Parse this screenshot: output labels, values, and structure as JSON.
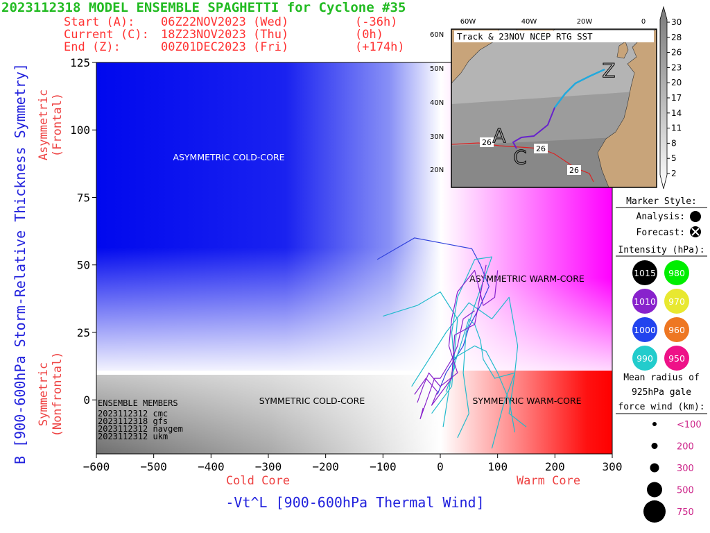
{
  "header": {
    "title": "2023112318 MODEL ENSEMBLE SPAGHETTI for Cyclone #35",
    "start_label": "Start (A):",
    "start_time": "06Z22NOV2023 (Wed)",
    "start_offset": "(-36h)",
    "current_label": "Current (C):",
    "current_time": "18Z23NOV2023 (Thu)",
    "current_offset": "(0h)",
    "end_label": "End (Z):",
    "end_time": "00Z01DEC2023 (Fri)",
    "end_offset": "(+174h)"
  },
  "colors": {
    "title": "#22bb22",
    "header": "#ff3333",
    "axis_label": "#2222dd",
    "region_label": "#ee4444",
    "ensemble_cyan": "#22bbcc",
    "ensemble_purple": "#8822cc",
    "ensemble_blue": "#3344dd"
  },
  "chart_data": {
    "type": "line",
    "title": "2023112318 MODEL ENSEMBLE SPAGHETTI for Cyclone #35",
    "xlabel": "-Vt^L [900-600hPa Thermal Wind]",
    "ylabel": "B [900-600hPa Storm-Relative Thickness Symmetry]",
    "x_sublabel_left": "Cold Core",
    "x_sublabel_right": "Warm Core",
    "y_sublabel_top": "Asymmetric",
    "y_sublabel_top2": "(Frontal)",
    "y_sublabel_bottom": "Symmetric",
    "y_sublabel_bottom2": "(Nonfrontal)",
    "xlim": [
      -600,
      300
    ],
    "ylim": [
      -20,
      125
    ],
    "xticks": [
      "-600",
      "-500",
      "-400",
      "-300",
      "-200",
      "-100",
      "0",
      "100",
      "200",
      "300"
    ],
    "yticks": [
      "0",
      "25",
      "50",
      "75",
      "100",
      "125"
    ],
    "quadrants": {
      "asym_cold": "ASYMMETRIC COLD-CORE",
      "asym_warm": "ASYMMETRIC WARM-CORE",
      "sym_cold": "SYMMETRIC COLD-CORE",
      "sym_warm": "SYMMETRIC WARM-CORE"
    },
    "ensemble_header": "ENSEMBLE MEMBERS",
    "ensemble_members": [
      "2023112312 cmc",
      "2023112318 gfs",
      "2023112312 navgem",
      "2023112312 ukm"
    ],
    "series": [
      {
        "color": "#3344dd",
        "values": [
          [
            -5,
            2
          ],
          [
            10,
            10
          ],
          [
            40,
            20
          ],
          [
            50,
            27
          ],
          [
            70,
            35
          ],
          [
            85,
            42
          ],
          [
            70,
            50
          ],
          [
            55,
            56
          ],
          [
            -45,
            60
          ],
          [
            -110,
            52
          ]
        ]
      },
      {
        "color": "#22bbcc",
        "values": [
          [
            10,
            3
          ],
          [
            25,
            12
          ],
          [
            20,
            25
          ],
          [
            30,
            38
          ],
          [
            45,
            45
          ],
          [
            60,
            52
          ],
          [
            90,
            53
          ],
          [
            60,
            35
          ],
          [
            45,
            25
          ],
          [
            40,
            10
          ],
          [
            50,
            -5
          ],
          [
            30,
            -14
          ]
        ]
      },
      {
        "color": "#22bbcc",
        "values": [
          [
            5,
            -10
          ],
          [
            20,
            10
          ],
          [
            35,
            20
          ],
          [
            50,
            30
          ],
          [
            60,
            28
          ],
          [
            70,
            22
          ],
          [
            75,
            15
          ],
          [
            95,
            8
          ],
          [
            130,
            10
          ],
          [
            120,
            -5
          ],
          [
            150,
            -10
          ]
        ]
      },
      {
        "color": "#22bbcc",
        "values": [
          [
            -50,
            5
          ],
          [
            -20,
            15
          ],
          [
            10,
            25
          ],
          [
            50,
            36
          ],
          [
            90,
            30
          ],
          [
            120,
            38
          ],
          [
            135,
            20
          ],
          [
            130,
            10
          ],
          [
            110,
            -2
          ],
          [
            90,
            -18
          ]
        ]
      },
      {
        "color": "#22bbcc",
        "values": [
          [
            20,
            15
          ],
          [
            60,
            20
          ],
          [
            80,
            18
          ],
          [
            100,
            10
          ],
          [
            120,
            0
          ],
          [
            130,
            -12
          ]
        ]
      },
      {
        "color": "#22bbcc",
        "values": [
          [
            -15,
            -5
          ],
          [
            20,
            5
          ],
          [
            30,
            30
          ],
          [
            0,
            40
          ],
          [
            -40,
            35
          ],
          [
            -100,
            31
          ]
        ]
      },
      {
        "color": "#8822cc",
        "values": [
          [
            -40,
            -1
          ],
          [
            -30,
            5
          ],
          [
            -20,
            10
          ],
          [
            0,
            5
          ],
          [
            30,
            10
          ],
          [
            15,
            20
          ],
          [
            20,
            30
          ],
          [
            30,
            40
          ],
          [
            60,
            48
          ],
          [
            75,
            35
          ],
          [
            95,
            38
          ],
          [
            100,
            48
          ]
        ]
      },
      {
        "color": "#8822cc",
        "values": [
          [
            -45,
            2
          ],
          [
            -25,
            8
          ],
          [
            -5,
            3
          ],
          [
            -15,
            -2
          ],
          [
            20,
            8
          ],
          [
            25,
            24
          ],
          [
            60,
            28
          ],
          [
            80,
            50
          ]
        ]
      },
      {
        "color": "#8822cc",
        "values": [
          [
            -30,
            -3
          ],
          [
            -35,
            -7
          ],
          [
            -20,
            2
          ],
          [
            -10,
            8
          ],
          [
            0,
            8
          ],
          [
            20,
            15
          ],
          [
            30,
            20
          ],
          [
            40,
            30
          ],
          [
            60,
            33
          ]
        ]
      }
    ]
  },
  "inset": {
    "title": "Track & 23NOV NCEP RTG SST",
    "lon_ticks": [
      "60W",
      "40W",
      "20W",
      "0"
    ],
    "lat_ticks": [
      "60N",
      "50N",
      "40N",
      "30N",
      "20N"
    ],
    "sst_labels": [
      "26",
      "26",
      "26"
    ],
    "track_labels": [
      "A",
      "C",
      "Z"
    ]
  },
  "colorbar": {
    "ticks": [
      "30",
      "28",
      "26",
      "23",
      "20",
      "17",
      "14",
      "11",
      "8",
      "5",
      "2"
    ]
  },
  "legend": {
    "marker_style_title": "Marker Style:",
    "analysis_label": "Analysis:",
    "forecast_label": "Forecast:",
    "intensity_title": "Intensity (hPa):",
    "intensity": [
      {
        "value": "1015",
        "color": "#000000"
      },
      {
        "value": "980",
        "color": "#00ee00"
      },
      {
        "value": "1010",
        "color": "#8822cc"
      },
      {
        "value": "970",
        "color": "#e8e830"
      },
      {
        "value": "1000",
        "color": "#2244ee"
      },
      {
        "value": "960",
        "color": "#ee7722"
      },
      {
        "value": "990",
        "color": "#22cccc"
      },
      {
        "value": "950",
        "color": "#ee1188"
      }
    ],
    "radius_title_1": "Mean radius of",
    "radius_title_2": "925hPa gale",
    "radius_title_3": "force wind (km):",
    "radius": [
      "<100",
      "200",
      "300",
      "500",
      "750"
    ]
  }
}
